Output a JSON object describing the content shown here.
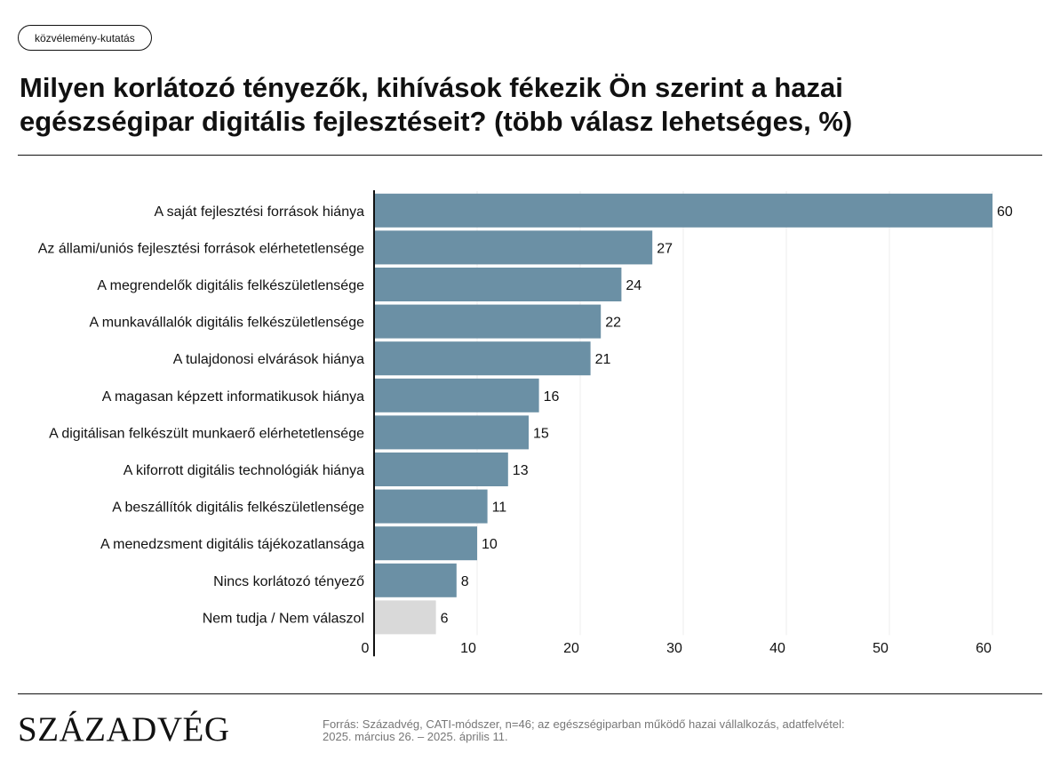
{
  "header": {
    "tag": "közvélemény-kutatás",
    "title": "Milyen korlátozó tényezők, kihívások fékezik Ön szerint a hazai egészségipar digitális fejlesztéseit? (több válasz lehetséges, %)"
  },
  "chart_data": {
    "type": "bar",
    "orientation": "horizontal",
    "title": "Milyen korlátozó tényezők, kihívások fékezik Ön szerint a hazai egészségipar digitális fejlesztéseit? (több válasz lehetséges, %)",
    "categories": [
      "A saját fejlesztési források hiánya",
      "Az állami/uniós fejlesztési források elérhetetlensége",
      "A megrendelők digitális felkészületlensége",
      "A munkavállalók digitális felkészületlensége",
      "A tulajdonosi elvárások hiánya",
      "A magasan képzett informatikusok hiánya",
      "A digitálisan felkészült munkaerő elérhetetlensége",
      "A kiforrott digitális technológiák hiánya",
      "A beszállítók digitális felkészületlensége",
      "A menedzsment digitális tájékozatlansága",
      "Nincs korlátozó tényező",
      "Nem tudja / Nem válaszol"
    ],
    "values": [
      60,
      27,
      24,
      22,
      21,
      16,
      15,
      13,
      11,
      10,
      8,
      6
    ],
    "bar_colors": [
      "#6b90a5",
      "#6b90a5",
      "#6b90a5",
      "#6b90a5",
      "#6b90a5",
      "#6b90a5",
      "#6b90a5",
      "#6b90a5",
      "#6b90a5",
      "#6b90a5",
      "#6b90a5",
      "#d9d9d9"
    ],
    "x_ticks": [
      0,
      10,
      20,
      30,
      40,
      50,
      60
    ],
    "xlim": [
      0,
      60
    ],
    "grid": true,
    "xlabel": "",
    "ylabel": ""
  },
  "footer": {
    "logo": "SZÁZADVÉG",
    "source_line1": "Forrás: Századvég, CATI-módszer, n=46; az egészségiparban működő hazai vállalkozás, adatfelvétel:",
    "source_line2": "2025. március 26. – 2025. április 11."
  }
}
